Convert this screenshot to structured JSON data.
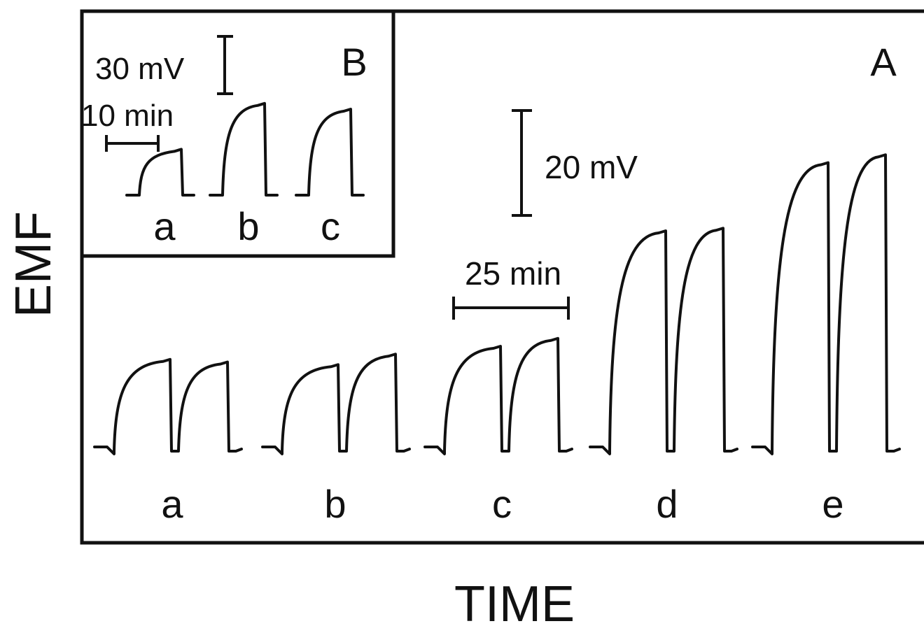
{
  "chart_data": [
    {
      "type": "line",
      "panel": "A",
      "xlabel": "TIME",
      "ylabel": "EMF",
      "scale_bars": {
        "time": "25 min",
        "emf": "20 mV"
      },
      "series": [
        {
          "label": "a",
          "pulses": [
            {
              "plateau_mV": 17.5
            },
            {
              "plateau_mV": 17.0
            }
          ]
        },
        {
          "label": "b",
          "pulses": [
            {
              "plateau_mV": 16.5
            },
            {
              "plateau_mV": 18.5
            }
          ]
        },
        {
          "label": "c",
          "pulses": [
            {
              "plateau_mV": 20.0
            },
            {
              "plateau_mV": 21.5
            }
          ]
        },
        {
          "label": "d",
          "pulses": [
            {
              "plateau_mV": 42.0
            },
            {
              "plateau_mV": 42.5
            }
          ]
        },
        {
          "label": "e",
          "pulses": [
            {
              "plateau_mV": 55.0
            },
            {
              "plateau_mV": 56.5
            }
          ]
        }
      ]
    },
    {
      "type": "line",
      "panel": "B",
      "scale_bars": {
        "time": "10 min",
        "emf": "30 mV"
      },
      "series": [
        {
          "label": "a",
          "plateau_mV": 24
        },
        {
          "label": "b",
          "plateau_mV": 48
        },
        {
          "label": "c",
          "plateau_mV": 45
        }
      ]
    }
  ]
}
